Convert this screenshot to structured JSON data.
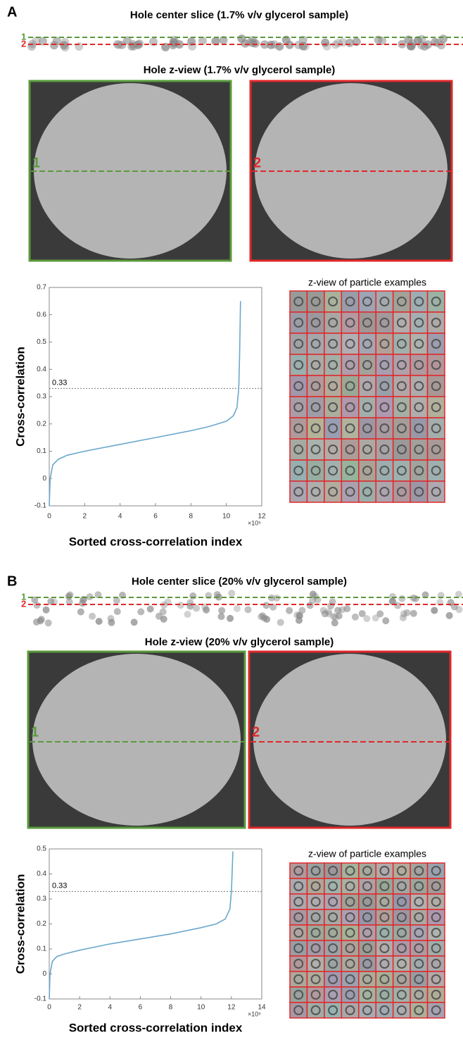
{
  "panels": [
    {
      "label": "A",
      "slice_title": "Hole center slice (1.7% v/v glycerol sample)",
      "line_labels": [
        "1",
        "2"
      ],
      "zview_title": "Hole z-view (1.7% v/v glycerol sample)",
      "image_labels": [
        "1",
        "2"
      ],
      "grid_title": "z-view of particle examples"
    },
    {
      "label": "B",
      "slice_title": "Hole center slice (20% v/v glycerol sample)",
      "line_labels": [
        "1",
        "2"
      ],
      "zview_title": "Hole z-view (20% v/v glycerol sample)",
      "image_labels": [
        "1",
        "2"
      ],
      "grid_title": "z-view of particle examples"
    }
  ],
  "chart_data": [
    {
      "type": "line",
      "x_label": "Sorted cross-correlation index",
      "y_label": "Cross-correlation",
      "x_multiplier_label": "×10⁵",
      "x": [
        0,
        0.05,
        0.2,
        0.5,
        1,
        2,
        4,
        6,
        8,
        9,
        10,
        10.4,
        10.6,
        10.7,
        10.75,
        10.8
      ],
      "values": [
        -0.1,
        0.0,
        0.05,
        0.07,
        0.085,
        0.1,
        0.125,
        0.15,
        0.175,
        0.19,
        0.21,
        0.23,
        0.26,
        0.33,
        0.45,
        0.65
      ],
      "color": "#6aa8cc",
      "xlim": [
        0,
        12
      ],
      "xticks": [
        0,
        2,
        4,
        6,
        8,
        10,
        12
      ],
      "ylim": [
        -0.1,
        0.7
      ],
      "yticks": [
        -0.1,
        0,
        0.1,
        0.2,
        0.3,
        0.4,
        0.5,
        0.6,
        0.7
      ],
      "reference_line": 0.33
    },
    {
      "type": "line",
      "x_label": "Sorted cross-correlation index",
      "y_label": "Cross-correlation",
      "x_multiplier_label": "×10⁵",
      "x": [
        0,
        0.05,
        0.2,
        0.5,
        1,
        2,
        4,
        6,
        8,
        10,
        11,
        11.6,
        11.9,
        12.0,
        12.1
      ],
      "values": [
        -0.1,
        0.0,
        0.05,
        0.07,
        0.08,
        0.095,
        0.12,
        0.14,
        0.16,
        0.185,
        0.2,
        0.22,
        0.26,
        0.33,
        0.49
      ],
      "color": "#6aa8cc",
      "xlim": [
        0,
        14
      ],
      "xticks": [
        0,
        2,
        4,
        6,
        8,
        10,
        12,
        14
      ],
      "ylim": [
        -0.1,
        0.5
      ],
      "yticks": [
        -0.1,
        0,
        0.1,
        0.2,
        0.3,
        0.4,
        0.5
      ],
      "reference_line": 0.33
    }
  ]
}
